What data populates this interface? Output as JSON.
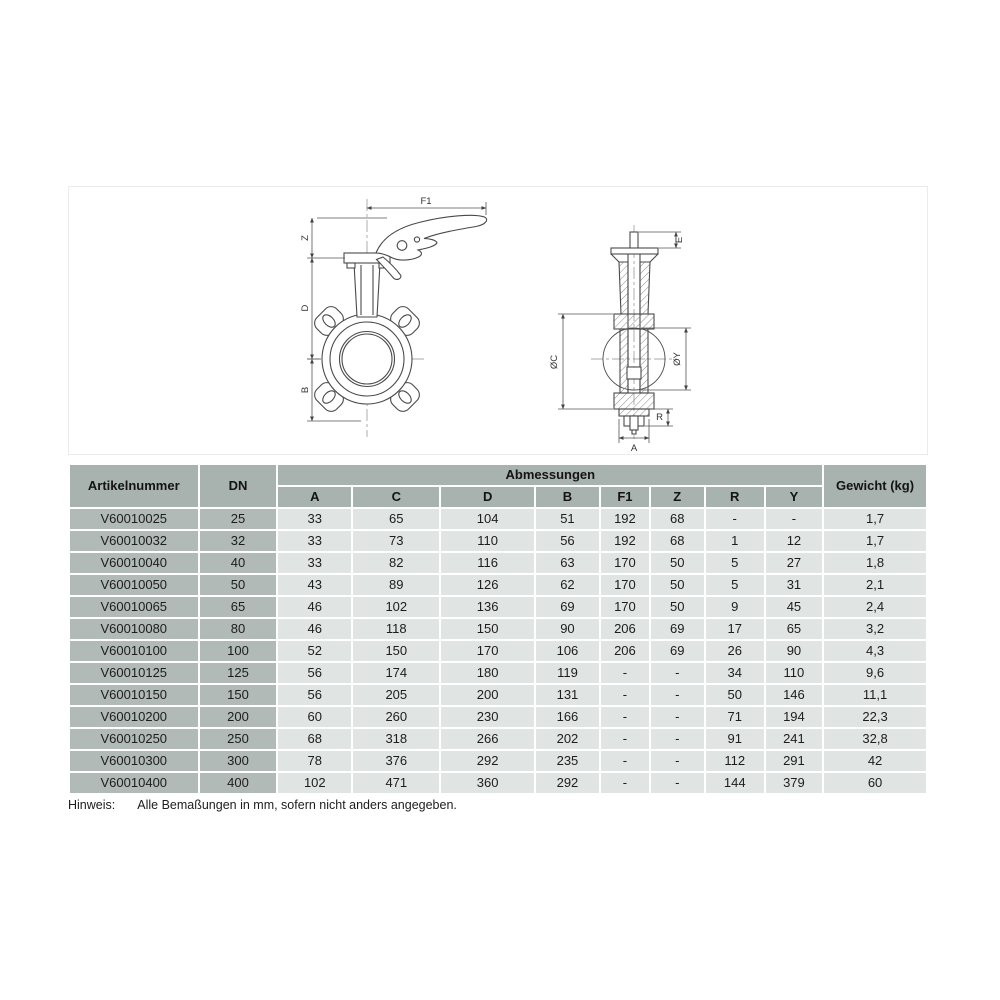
{
  "drawing": {
    "left_view": {
      "dim_f1": "F1",
      "dim_z": "Z",
      "dim_d": "D",
      "dim_b": "B"
    },
    "right_view": {
      "dim_e": "E",
      "dim_c": "ØC",
      "dim_y": "ØY",
      "dim_r": "R",
      "dim_a": "A"
    }
  },
  "table": {
    "header": {
      "artikelnummer": "Artikelnummer",
      "dn": "DN",
      "abmessungen": "Abmessungen",
      "gewicht": "Gewicht (kg)",
      "dims": [
        "A",
        "C",
        "D",
        "B",
        "F1",
        "Z",
        "R",
        "Y"
      ]
    },
    "colors": {
      "header_bg": "#a8b2ae",
      "rowhead_bg": "#b1bab6",
      "cell_bg": "#e0e4e2",
      "separator": "#ffffff"
    },
    "rows": [
      {
        "art": "V60010025",
        "dn": "25",
        "vals": [
          "33",
          "65",
          "104",
          "51",
          "192",
          "68",
          "-",
          "-"
        ],
        "weight": "1,7"
      },
      {
        "art": "V60010032",
        "dn": "32",
        "vals": [
          "33",
          "73",
          "110",
          "56",
          "192",
          "68",
          "1",
          "12"
        ],
        "weight": "1,7"
      },
      {
        "art": "V60010040",
        "dn": "40",
        "vals": [
          "33",
          "82",
          "116",
          "63",
          "170",
          "50",
          "5",
          "27"
        ],
        "weight": "1,8"
      },
      {
        "art": "V60010050",
        "dn": "50",
        "vals": [
          "43",
          "89",
          "126",
          "62",
          "170",
          "50",
          "5",
          "31"
        ],
        "weight": "2,1"
      },
      {
        "art": "V60010065",
        "dn": "65",
        "vals": [
          "46",
          "102",
          "136",
          "69",
          "170",
          "50",
          "9",
          "45"
        ],
        "weight": "2,4"
      },
      {
        "art": "V60010080",
        "dn": "80",
        "vals": [
          "46",
          "118",
          "150",
          "90",
          "206",
          "69",
          "17",
          "65"
        ],
        "weight": "3,2"
      },
      {
        "art": "V60010100",
        "dn": "100",
        "vals": [
          "52",
          "150",
          "170",
          "106",
          "206",
          "69",
          "26",
          "90"
        ],
        "weight": "4,3"
      },
      {
        "art": "V60010125",
        "dn": "125",
        "vals": [
          "56",
          "174",
          "180",
          "119",
          "-",
          "-",
          "34",
          "110"
        ],
        "weight": "9,6"
      },
      {
        "art": "V60010150",
        "dn": "150",
        "vals": [
          "56",
          "205",
          "200",
          "131",
          "-",
          "-",
          "50",
          "146"
        ],
        "weight": "11,1"
      },
      {
        "art": "V60010200",
        "dn": "200",
        "vals": [
          "60",
          "260",
          "230",
          "166",
          "-",
          "-",
          "71",
          "194"
        ],
        "weight": "22,3"
      },
      {
        "art": "V60010250",
        "dn": "250",
        "vals": [
          "68",
          "318",
          "266",
          "202",
          "-",
          "-",
          "91",
          "241"
        ],
        "weight": "32,8"
      },
      {
        "art": "V60010300",
        "dn": "300",
        "vals": [
          "78",
          "376",
          "292",
          "235",
          "-",
          "-",
          "112",
          "291"
        ],
        "weight": "42"
      },
      {
        "art": "V60010400",
        "dn": "400",
        "vals": [
          "102",
          "471",
          "360",
          "292",
          "-",
          "-",
          "144",
          "379"
        ],
        "weight": "60"
      }
    ]
  },
  "note": {
    "label": "Hinweis:",
    "text": "Alle Bemaßungen in mm, sofern nicht anders angegeben."
  }
}
